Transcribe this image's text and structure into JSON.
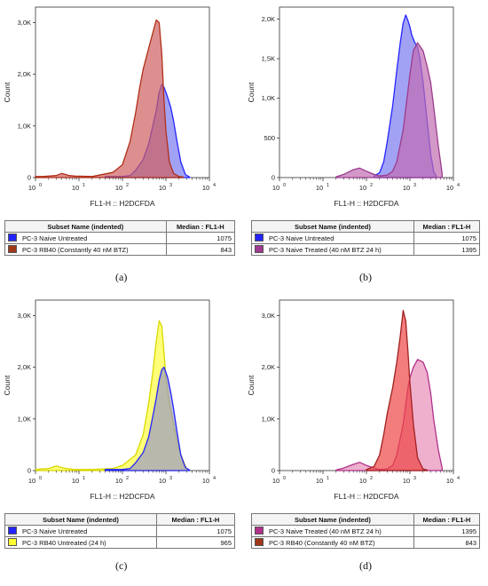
{
  "chart_data": [
    {
      "type": "area",
      "xlabel": "FL1-H :: H2DCFDA",
      "ylabel": "Count",
      "xscale": "log",
      "xlim": [
        1,
        10000
      ],
      "ylim": [
        0,
        3300
      ],
      "yticks": [
        {
          "v": 0,
          "l": "0"
        },
        {
          "v": 1000,
          "l": "1,0K"
        },
        {
          "v": 2000,
          "l": "2,0K"
        },
        {
          "v": 3000,
          "l": "3,0K"
        }
      ],
      "xticks": [
        {
          "p": "10",
          "s": "0"
        },
        {
          "p": "10",
          "s": "1"
        },
        {
          "p": "10",
          "s": "2"
        },
        {
          "p": "10",
          "s": "3"
        },
        {
          "p": "10",
          "s": "4"
        }
      ],
      "series": [
        {
          "name": "PC-3 Naive Untreated",
          "color": "#2424ff",
          "fill": "#7b7bf0",
          "x": [
            40,
            100,
            150,
            200,
            300,
            400,
            500,
            600,
            700,
            800,
            900,
            1000,
            1100,
            1300,
            1500,
            1800,
            2200,
            2800,
            3500
          ],
          "y": [
            20,
            20,
            40,
            140,
            350,
            650,
            1000,
            1300,
            1650,
            1800,
            1750,
            1650,
            1550,
            1350,
            1100,
            700,
            300,
            60,
            10
          ]
        },
        {
          "name": "PC-3 RB40 (Constantly 40 nM BTZ)",
          "color": "#b03018",
          "fill": "#cf6060",
          "x": [
            1,
            1.5,
            3,
            4,
            6,
            8,
            20,
            60,
            100,
            150,
            200,
            250,
            300,
            400,
            500,
            600,
            700,
            800,
            900,
            1000,
            1200,
            1500,
            2000,
            2500
          ],
          "y": [
            20,
            20,
            40,
            80,
            40,
            30,
            20,
            100,
            250,
            700,
            1250,
            1750,
            2100,
            2500,
            2800,
            3050,
            3000,
            2400,
            1500,
            900,
            300,
            80,
            20,
            10
          ]
        }
      ],
      "table": {
        "header": [
          "Subset Name (indented)",
          "Median : FL1-H"
        ],
        "rows": [
          [
            "PC-3 Naive Untreated",
            "1075"
          ],
          [
            "PC-3 RB40 (Constantly 40 nM BTZ)",
            "843"
          ]
        ]
      },
      "label": "(a)"
    },
    {
      "type": "area",
      "xlabel": "FL1-H :: H2DCFDA",
      "ylabel": "Count",
      "xscale": "log",
      "xlim": [
        1,
        10000
      ],
      "ylim": [
        0,
        2150
      ],
      "yticks": [
        {
          "v": 0,
          "l": "0"
        },
        {
          "v": 500,
          "l": "500"
        },
        {
          "v": 1000,
          "l": "1,0K"
        },
        {
          "v": 1500,
          "l": "1,5K"
        },
        {
          "v": 2000,
          "l": "2,0K"
        }
      ],
      "xticks": [
        {
          "p": "10",
          "s": "0"
        },
        {
          "p": "10",
          "s": "1"
        },
        {
          "p": "10",
          "s": "2"
        },
        {
          "p": "10",
          "s": "3"
        },
        {
          "p": "10",
          "s": "4"
        }
      ],
      "series": [
        {
          "name": "PC-3 Naive Untreated",
          "color": "#2424ff",
          "fill": "#7b7bf0",
          "x": [
            150,
            200,
            250,
            300,
            400,
            500,
            600,
            700,
            800,
            900,
            1000,
            1100,
            1300,
            1500,
            1700,
            2000,
            2400,
            3000,
            3500,
            4000
          ],
          "y": [
            20,
            60,
            200,
            450,
            900,
            1350,
            1700,
            1950,
            2050,
            1980,
            1900,
            1800,
            1700,
            1650,
            1500,
            1200,
            800,
            300,
            80,
            20
          ]
        },
        {
          "name": "PC-3 Naive Treated (40 nM BTZ 24 h)",
          "color": "#9b3b8f",
          "fill": "#c06cb0",
          "x": [
            20,
            30,
            50,
            70,
            100,
            150,
            200,
            300,
            400,
            500,
            700,
            900,
            1000,
            1200,
            1500,
            2000,
            2500,
            3000,
            3500,
            4500,
            5500
          ],
          "y": [
            10,
            40,
            100,
            120,
            80,
            40,
            20,
            30,
            80,
            200,
            600,
            1100,
            1300,
            1600,
            1700,
            1600,
            1400,
            1200,
            900,
            400,
            50
          ]
        }
      ],
      "table": {
        "header": [
          "Subset Name (indented)",
          "Median : FL1-H"
        ],
        "rows": [
          [
            "PC-3 Naive Untreated",
            "1075"
          ],
          [
            "PC-3 Naive Treated (40 nM BTZ 24 h)",
            "1395"
          ]
        ]
      },
      "label": "(b)"
    },
    {
      "type": "area",
      "xlabel": "FL1-H :: H2DCFDA",
      "ylabel": "Count",
      "xscale": "log",
      "xlim": [
        1,
        10000
      ],
      "ylim": [
        0,
        3300
      ],
      "yticks": [
        {
          "v": 0,
          "l": "0"
        },
        {
          "v": 1000,
          "l": "1,0K"
        },
        {
          "v": 2000,
          "l": "2,0K"
        },
        {
          "v": 3000,
          "l": "3,0K"
        }
      ],
      "xticks": [
        {
          "p": "10",
          "s": "0"
        },
        {
          "p": "10",
          "s": "1"
        },
        {
          "p": "10",
          "s": "2"
        },
        {
          "p": "10",
          "s": "3"
        },
        {
          "p": "10",
          "s": "4"
        }
      ],
      "series": [
        {
          "name": "PC-3 RB40 Untreated (24 h)",
          "color": "#d8d800",
          "fill": "#ffff40",
          "x": [
            1,
            2,
            3,
            5,
            8,
            20,
            60,
            100,
            200,
            300,
            400,
            500,
            600,
            700,
            800,
            900,
            1000,
            1200,
            1500,
            2000,
            3000
          ],
          "y": [
            20,
            40,
            90,
            40,
            20,
            20,
            40,
            100,
            300,
            700,
            1300,
            1900,
            2500,
            2900,
            2800,
            2300,
            1800,
            1300,
            900,
            400,
            20
          ]
        },
        {
          "name": "PC-3 Naive Untreated",
          "color": "#2424ff",
          "fill": "#9a9ac2",
          "x": [
            40,
            100,
            150,
            200,
            300,
            400,
            500,
            600,
            700,
            800,
            900,
            1000,
            1100,
            1300,
            1500,
            1800,
            2200,
            2800,
            3500
          ],
          "y": [
            20,
            20,
            40,
            150,
            350,
            650,
            1050,
            1400,
            1750,
            1950,
            2000,
            1900,
            1800,
            1500,
            1200,
            750,
            300,
            60,
            10
          ]
        }
      ],
      "table": {
        "header": [
          "Subset Name (indented)",
          "Median : FL1-H"
        ],
        "rows": [
          [
            "PC-3 Naive Untreated",
            "1075"
          ],
          [
            "PC-3 RB40 Untreated (24 h)",
            "965"
          ]
        ]
      },
      "label": "(c)"
    },
    {
      "type": "area",
      "xlabel": "FL1-H :: H2DCFDA",
      "ylabel": "Count",
      "xscale": "log",
      "xlim": [
        1,
        10000
      ],
      "ylim": [
        0,
        3300
      ],
      "yticks": [
        {
          "v": 0,
          "l": "0"
        },
        {
          "v": 1000,
          "l": "1,0K"
        },
        {
          "v": 2000,
          "l": "2,0K"
        },
        {
          "v": 3000,
          "l": "3,0K"
        }
      ],
      "xticks": [
        {
          "p": "10",
          "s": "0"
        },
        {
          "p": "10",
          "s": "1"
        },
        {
          "p": "10",
          "s": "2"
        },
        {
          "p": "10",
          "s": "3"
        },
        {
          "p": "10",
          "s": "4"
        }
      ],
      "series": [
        {
          "name": "PC-3 Naive Treated (40 nM BTZ 24 h)",
          "color": "#b0308a",
          "fill": "#e88fb8",
          "x": [
            20,
            30,
            50,
            70,
            100,
            150,
            200,
            300,
            400,
            500,
            700,
            900,
            1000,
            1200,
            1500,
            2000,
            2500,
            3000,
            3500,
            4500,
            5500
          ],
          "y": [
            10,
            50,
            120,
            160,
            100,
            50,
            20,
            30,
            100,
            300,
            900,
            1600,
            1800,
            2000,
            2150,
            2100,
            1900,
            1500,
            1000,
            400,
            50
          ]
        },
        {
          "name": "PC-3 RB40 (Constantly 40 nM BTZ)",
          "color": "#a02020",
          "fill": "#ee4444",
          "x": [
            100,
            150,
            200,
            250,
            300,
            400,
            500,
            600,
            700,
            800,
            900,
            1000,
            1200,
            1500,
            2000,
            2500
          ],
          "y": [
            20,
            80,
            300,
            700,
            1100,
            1600,
            2100,
            2600,
            3100,
            2900,
            2300,
            1700,
            900,
            250,
            30,
            10
          ]
        }
      ],
      "table": {
        "header": [
          "Subset Name (indented)",
          "Median : FL1-H"
        ],
        "rows": [
          [
            "PC-3 Naive Treated (40 nM BTZ 24 h)",
            "1395"
          ],
          [
            "PC-3 RB40 (Constantly 40 nM BTZ)",
            "843"
          ]
        ]
      },
      "label": "(d)"
    }
  ]
}
